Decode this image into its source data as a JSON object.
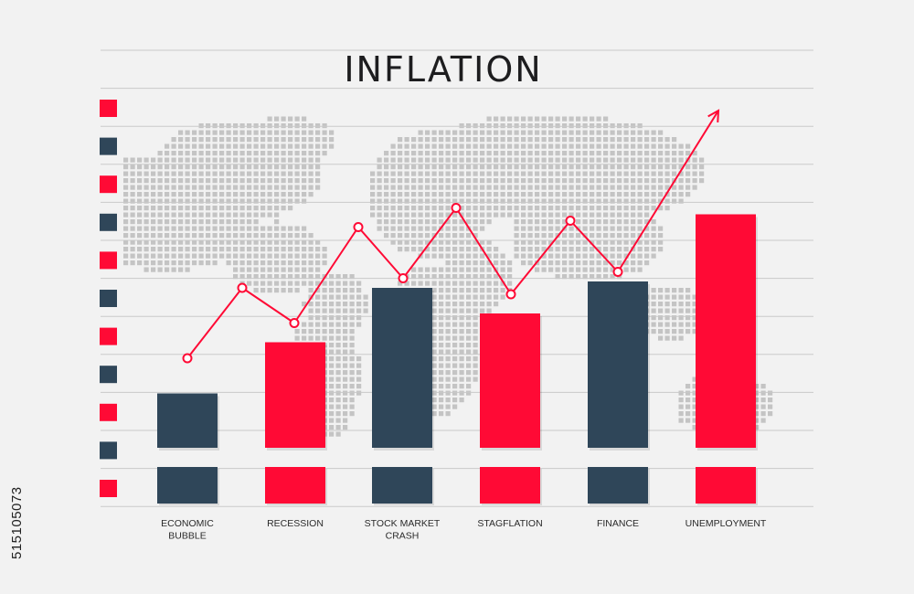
{
  "chart_data": {
    "type": "bar",
    "title": "INFLATION",
    "categories": [
      "ECONOMIC BUBBLE",
      "RECESSION",
      "STOCK MARKET CRASH",
      "STAGFLATION",
      "FINANCE",
      "UNEMPLOYMENT"
    ],
    "category_lines": [
      [
        "ECONOMIC",
        "BUBBLE"
      ],
      [
        "RECESSION"
      ],
      [
        "STOCK MARKET",
        "CRASH"
      ],
      [
        "STAGFLATION"
      ],
      [
        "FINANCE"
      ],
      [
        "UNEMPLOYMENT"
      ]
    ],
    "values": [
      17,
      33,
      50,
      42,
      52,
      73
    ],
    "bar_colors": [
      "#2f4659",
      "#ff0a35",
      "#2f4659",
      "#ff0a35",
      "#2f4659",
      "#ff0a35"
    ],
    "trend_line": {
      "values": [
        28,
        50,
        39,
        69,
        53,
        75,
        48,
        71,
        55
      ],
      "arrow": true,
      "color": "#ff0a35"
    },
    "ylim": [
      0,
      100
    ],
    "grid": true,
    "background_map": "dotted-world-map"
  },
  "colors": {
    "red": "#ff0a35",
    "navy": "#2f4659",
    "grid": "#c9c9c9",
    "background": "#f2f2f2"
  },
  "side_id": "515105073"
}
